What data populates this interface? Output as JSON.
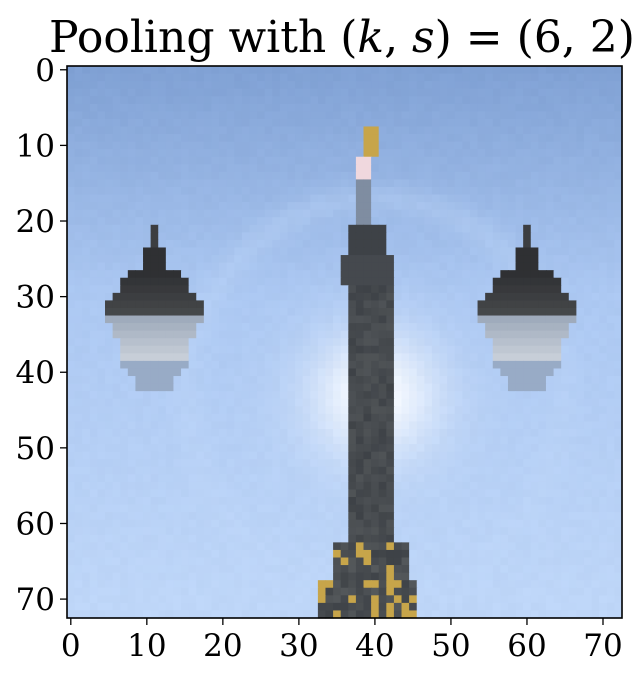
{
  "chart_data": {
    "type": "heatmap",
    "title": "Pooling with (k, s) = (6, 2)",
    "title_parts": {
      "prefix": "Pooling with ",
      "open_paren": "(",
      "k": "k",
      "comma": ", ",
      "s": "s",
      "close_eq": ") = (6, 2)"
    },
    "xlabel": "",
    "ylabel": "",
    "xlim": [
      -0.5,
      72.5
    ],
    "ylim": [
      72.5,
      -0.5
    ],
    "grid": false,
    "grid_size": [
      73,
      73
    ],
    "xticks": [
      0,
      10,
      20,
      30,
      40,
      50,
      60,
      70
    ],
    "yticks": [
      0,
      10,
      20,
      30,
      40,
      50,
      60,
      70
    ],
    "xtick_labels": [
      "0",
      "10",
      "20",
      "30",
      "40",
      "50",
      "60",
      "70"
    ],
    "ytick_labels": [
      "0",
      "10",
      "20",
      "30",
      "40",
      "50",
      "60",
      "70"
    ],
    "image_content": "pixelated photo of a central lamp post with two hanging lanterns against a blue sky with sun glare",
    "colors": {
      "sky_top": "#7e9fd2",
      "sky_mid": "#aac6f0",
      "sky_low": "#bcd4f6",
      "glow": "#ffffff",
      "post_dark": "#3e4247",
      "post_mid": "#5b5f61",
      "lantern_top": "#2f3033",
      "lantern_glass": "#8e9cb0",
      "highlight": "#c7a54a"
    }
  }
}
